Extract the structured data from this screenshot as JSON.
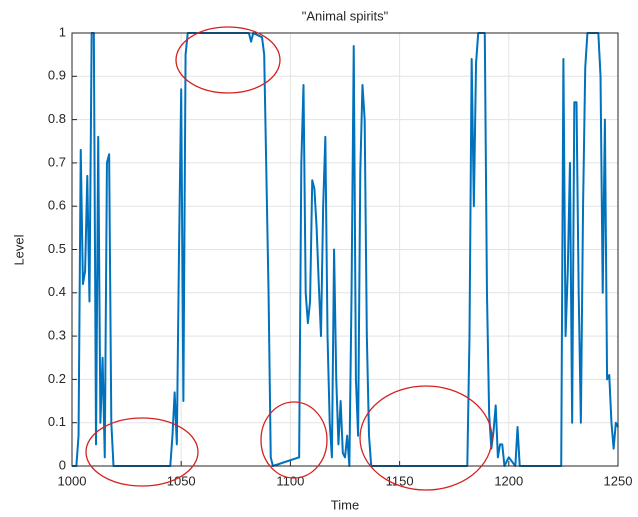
{
  "chart_data": {
    "type": "line",
    "title": "\"Animal spirits\"",
    "x_label": "Time",
    "y_label": "Level",
    "x": [
      1000,
      1002,
      1003,
      1004,
      1005,
      1006,
      1007,
      1008,
      1009,
      1010,
      1011,
      1012,
      1013,
      1014,
      1015,
      1016,
      1017,
      1018,
      1019,
      1045,
      1046,
      1047,
      1048,
      1049,
      1050,
      1051,
      1052,
      1053,
      1081,
      1082,
      1083,
      1087,
      1088,
      1090,
      1091,
      1092,
      1104,
      1105,
      1106,
      1107,
      1108,
      1109,
      1110,
      1111,
      1112,
      1113,
      1114,
      1115,
      1116,
      1117,
      1118,
      1119,
      1120,
      1121,
      1122,
      1123,
      1124,
      1125,
      1126,
      1127,
      1128,
      1129,
      1130,
      1131,
      1132,
      1133,
      1134,
      1135,
      1136,
      1137,
      1181,
      1182,
      1183,
      1184,
      1185,
      1186,
      1189,
      1190,
      1191,
      1192,
      1193,
      1194,
      1195,
      1196,
      1197,
      1198,
      1200,
      1203,
      1204,
      1205,
      1224,
      1225,
      1226,
      1227,
      1228,
      1229,
      1230,
      1231,
      1232,
      1233,
      1234,
      1235,
      1236,
      1241,
      1242,
      1243,
      1244,
      1245,
      1246,
      1247,
      1248,
      1249,
      1250
    ],
    "values": [
      0,
      0,
      0.07,
      0.73,
      0.42,
      0.45,
      0.67,
      0.38,
      1,
      1,
      0.05,
      0.76,
      0.1,
      0.25,
      0.02,
      0.7,
      0.72,
      0.1,
      0,
      0,
      0.07,
      0.17,
      0.05,
      0.5,
      0.87,
      0.15,
      0.95,
      1,
      1,
      0.98,
      1,
      0.99,
      0.95,
      0.4,
      0.02,
      0,
      0.02,
      0.7,
      0.88,
      0.4,
      0.33,
      0.38,
      0.66,
      0.64,
      0.55,
      0.42,
      0.3,
      0.6,
      0.76,
      0.3,
      0.1,
      0.02,
      0.5,
      0.2,
      0.05,
      0.15,
      0.03,
      0.02,
      0.07,
      0,
      0.4,
      0.97,
      0.2,
      0.07,
      0.68,
      0.88,
      0.8,
      0.3,
      0.07,
      0,
      0,
      0.3,
      0.94,
      0.6,
      0.93,
      1,
      1,
      0.4,
      0.12,
      0.04,
      0.08,
      0.14,
      0.02,
      0.05,
      0.05,
      0,
      0.02,
      0,
      0.09,
      0,
      0,
      0.94,
      0.3,
      0.45,
      0.7,
      0.1,
      0.84,
      0.84,
      0.4,
      0.1,
      0.6,
      0.92,
      1,
      1,
      0.9,
      0.4,
      0.8,
      0.2,
      0.21,
      0.1,
      0.04,
      0.1,
      0.09
    ],
    "color": "#0072bd",
    "xlim": [
      1000,
      1250
    ],
    "xticks": [
      1000,
      1050,
      1100,
      1150,
      1200,
      1250
    ],
    "ylim": [
      0,
      1
    ],
    "yticks": [
      0,
      0.1,
      0.2,
      0.3,
      0.4,
      0.5,
      0.6,
      0.7,
      0.8,
      0.9,
      1
    ],
    "grid": true
  }
}
